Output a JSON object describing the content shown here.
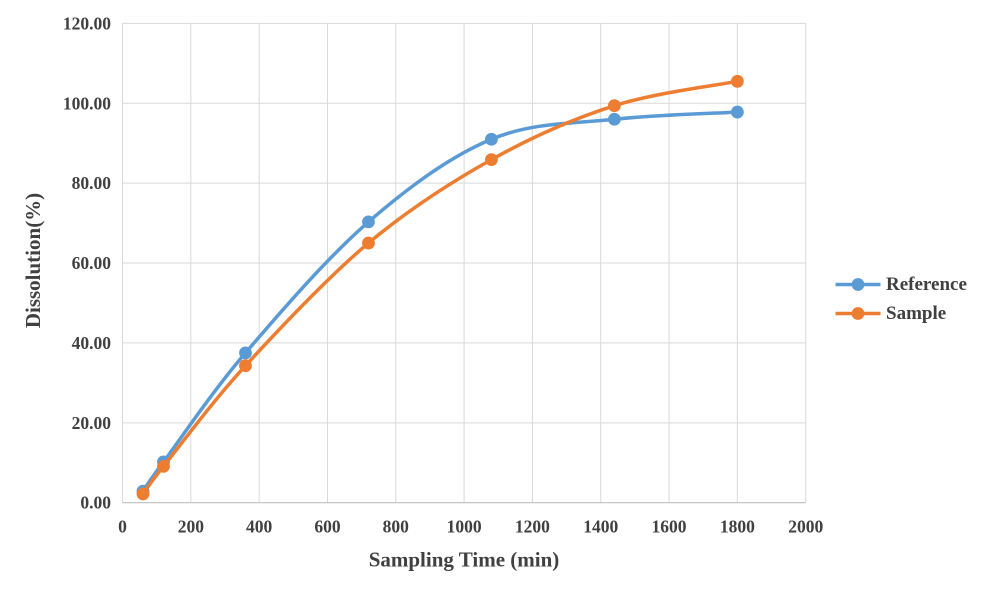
{
  "chart_data": {
    "type": "line",
    "title": "",
    "xlabel": "Sampling Time (min)",
    "ylabel": "Dissolution(%)",
    "x": [
      60,
      120,
      360,
      720,
      1080,
      1440,
      1800
    ],
    "series": [
      {
        "name": "Reference",
        "color": "#5B9BD5",
        "values": [
          2.9,
          10.2,
          37.5,
          70.3,
          91.0,
          96.0,
          97.8
        ]
      },
      {
        "name": "Sample",
        "color": "#ED7D31",
        "values": [
          2.2,
          9.1,
          34.3,
          65.0,
          85.9,
          99.4,
          105.5
        ]
      }
    ],
    "xlim": [
      0,
      2000
    ],
    "ylim": [
      0,
      120
    ],
    "x_tick_values": [
      0,
      200,
      400,
      600,
      800,
      1000,
      1200,
      1400,
      1600,
      1800,
      2000
    ],
    "x_tick_labels": [
      "0",
      "200",
      "400",
      "600",
      "800",
      "1000",
      "1200",
      "1400",
      "1600",
      "1800",
      "2000"
    ],
    "y_tick_values": [
      0,
      20,
      40,
      60,
      80,
      100,
      120
    ],
    "y_tick_labels": [
      "0.00",
      "20.00",
      "40.00",
      "60.00",
      "80.00",
      "100.00",
      "120.00"
    ],
    "grid": "on",
    "line_style": "smooth",
    "marker": "circle",
    "legend_position": "right",
    "colors": {
      "gridline": "#D9D9D9",
      "axis_line": "#BFBFBF",
      "text": "#404040",
      "background": "#FFFFFF"
    }
  }
}
